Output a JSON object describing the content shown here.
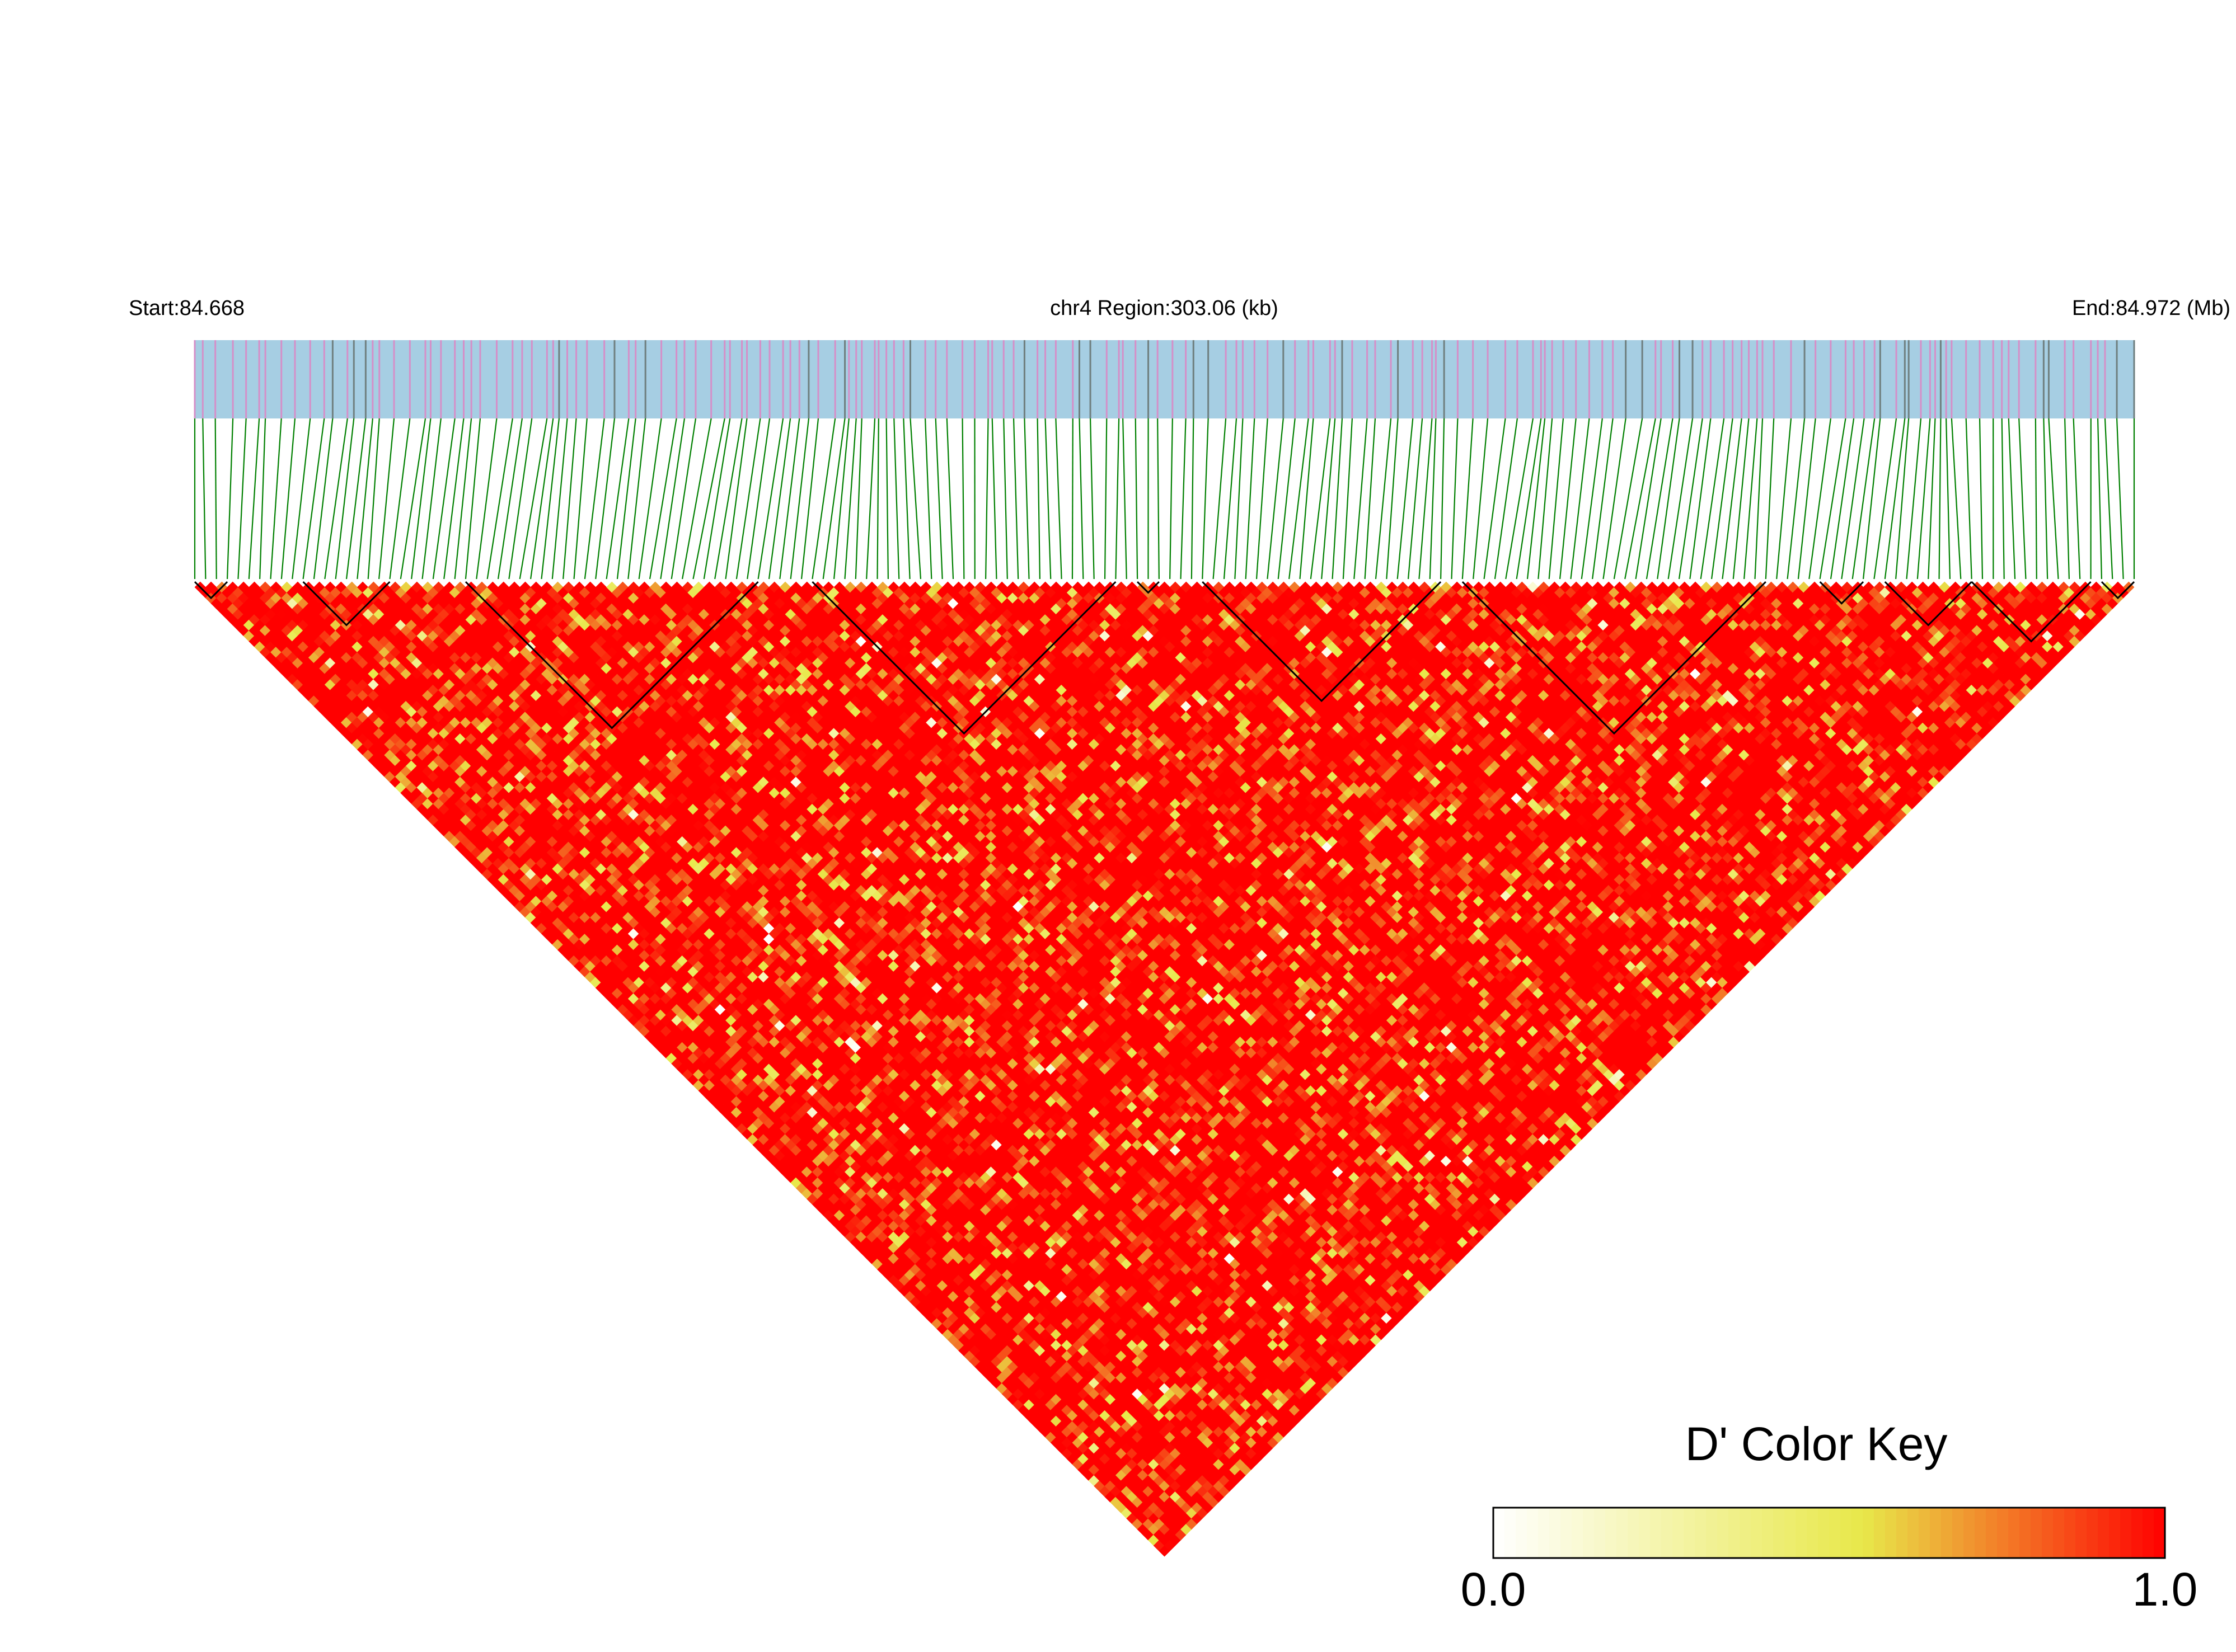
{
  "header": {
    "start_label": "Start:84.668",
    "region_label": "chr4 Region:303.06 (kb)",
    "end_label": "End:84.972 (Mb)"
  },
  "colors": {
    "track_background": "#a6cee3",
    "snp_tick_pink": "#d58fc8",
    "snp_tick_gray": "#6f7f7f",
    "connector_green": "#008000",
    "block_outline": "#000000",
    "key_low": "#ffffff",
    "key_mid": "#e8e84a",
    "key_high": "#ff0000"
  },
  "legend": {
    "title": "D' Color Key",
    "min_label": "0.0",
    "max_label": "1.0"
  },
  "chart_data": {
    "type": "heatmap",
    "title": "",
    "chromosome": "chr4",
    "start_mb": 84.668,
    "end_mb": 84.972,
    "region_kb": 303.06,
    "value_name": "D'",
    "value_range": [
      0.0,
      1.0
    ],
    "snp_count": 180,
    "haplotype_blocks": [
      {
        "first_snp": 0,
        "last_snp": 3
      },
      {
        "first_snp": 10,
        "last_snp": 18
      },
      {
        "first_snp": 25,
        "last_snp": 52
      },
      {
        "first_snp": 57,
        "last_snp": 85
      },
      {
        "first_snp": 87,
        "last_snp": 89
      },
      {
        "first_snp": 93,
        "last_snp": 115
      },
      {
        "first_snp": 117,
        "last_snp": 145
      },
      {
        "first_snp": 150,
        "last_snp": 154
      },
      {
        "first_snp": 156,
        "last_snp": 164
      },
      {
        "first_snp": 164,
        "last_snp": 175
      },
      {
        "first_snp": 176,
        "last_snp": 179
      }
    ]
  }
}
